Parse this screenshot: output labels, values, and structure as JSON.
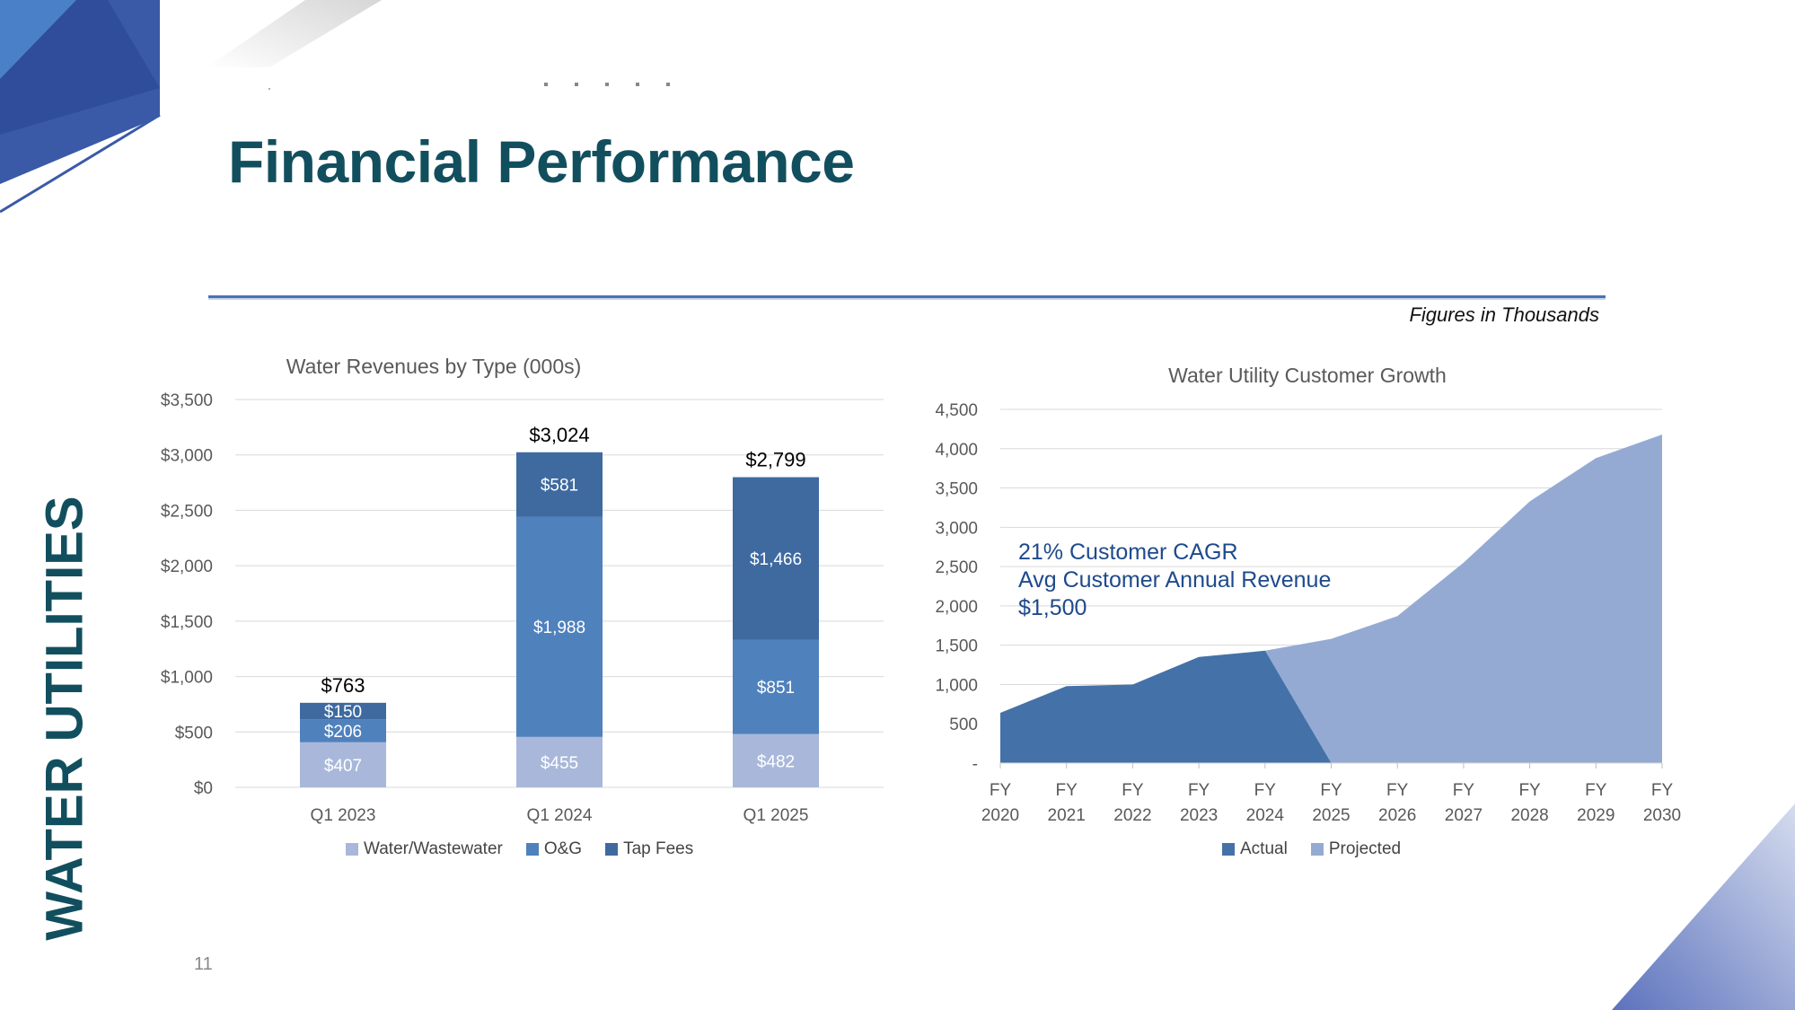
{
  "title": "Financial Performance",
  "figures_note": "Figures in Thousands",
  "section_label": "WATER UTILITIES",
  "page_number": "11",
  "colors": {
    "title": "#124f5e",
    "water": "#a9b8da",
    "om": "#4f81bd",
    "tap": "#3e6aa0",
    "actual": "#4472a8",
    "projected": "#95aad3",
    "annotation": "#1e4a8c"
  },
  "annotation": {
    "line1": "21% Customer CAGR",
    "line2": "Avg Customer Annual Revenue",
    "line3": "$1,500"
  },
  "chart_data": [
    {
      "type": "bar",
      "stacked": true,
      "title": "Water Revenues by Type (000s)",
      "categories": [
        "Q1 2023",
        "Q1 2024",
        "Q1 2025"
      ],
      "series": [
        {
          "name": "Water/Wastewater",
          "values": [
            407,
            455,
            482
          ],
          "labels": [
            "$407",
            "$455",
            "$482"
          ]
        },
        {
          "name": "O&G",
          "values": [
            206,
            1988,
            851
          ],
          "labels": [
            "$206",
            "$1,988",
            "$851"
          ]
        },
        {
          "name": "Tap Fees",
          "values": [
            150,
            581,
            1466
          ],
          "labels": [
            "$150",
            "$581",
            "$1,466"
          ]
        }
      ],
      "totals": [
        763,
        3024,
        2799
      ],
      "total_labels": [
        "$763",
        "$3,024",
        "$2,799"
      ],
      "ylim": [
        0,
        3500
      ],
      "yticks": [
        0,
        500,
        1000,
        1500,
        2000,
        2500,
        3000,
        3500
      ],
      "ytick_labels": [
        "$0",
        "$500",
        "$1,000",
        "$1,500",
        "$2,000",
        "$2,500",
        "$3,000",
        "$3,500"
      ],
      "grid": true,
      "legend_position": "bottom"
    },
    {
      "type": "area",
      "title": "Water Utility Customer Growth",
      "x": [
        "FY 2020",
        "FY 2021",
        "FY 2022",
        "FY 2023",
        "FY 2024",
        "FY 2025",
        "FY 2026",
        "FY 2027",
        "FY 2028",
        "FY 2029",
        "FY 2030"
      ],
      "x_line1": [
        "FY",
        "FY",
        "FY",
        "FY",
        "FY",
        "FY",
        "FY",
        "FY",
        "FY",
        "FY",
        "FY"
      ],
      "x_line2": [
        "2020",
        "2021",
        "2022",
        "2023",
        "2024",
        "2025",
        "2026",
        "2027",
        "2028",
        "2029",
        "2030"
      ],
      "series": [
        {
          "name": "Actual",
          "values": [
            640,
            980,
            1000,
            1350,
            1430,
            0,
            null,
            null,
            null,
            null,
            null
          ]
        },
        {
          "name": "Projected",
          "values": [
            null,
            null,
            null,
            null,
            1430,
            1580,
            1870,
            2550,
            3330,
            3880,
            4180
          ]
        }
      ],
      "ylim": [
        0,
        4500
      ],
      "yticks": [
        0,
        500,
        1000,
        1500,
        2000,
        2500,
        3000,
        3500,
        4000,
        4500
      ],
      "ytick_labels": [
        "-",
        "500",
        "1,000",
        "1,500",
        "2,000",
        "2,500",
        "3,000",
        "3,500",
        "4,000",
        "4,500"
      ],
      "grid": true,
      "legend_position": "bottom"
    }
  ]
}
